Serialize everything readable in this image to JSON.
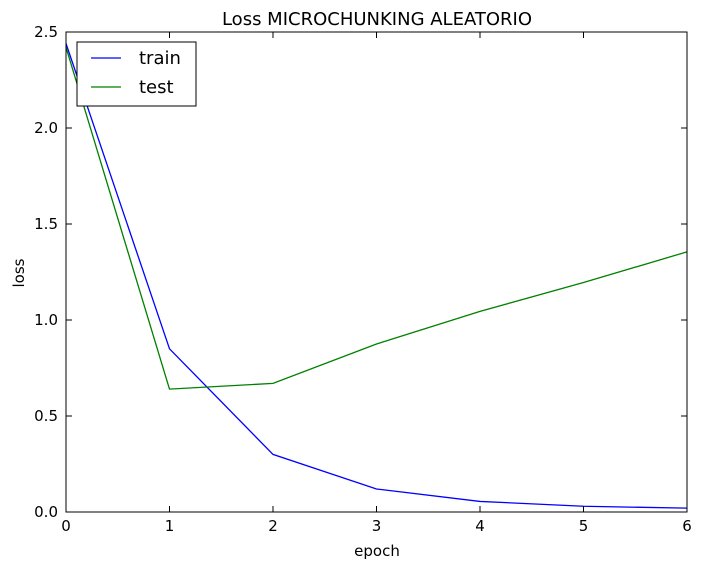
{
  "chart_data": {
    "type": "line",
    "title": "Loss MICROCHUNKING ALEATORIO",
    "xlabel": "epoch",
    "ylabel": "loss",
    "x": [
      0,
      1,
      2,
      3,
      4,
      5,
      6
    ],
    "xlim": [
      0,
      6
    ],
    "ylim": [
      0.0,
      2.5
    ],
    "xticks": [
      "0",
      "1",
      "2",
      "3",
      "4",
      "5",
      "6"
    ],
    "yticks": [
      "0.0",
      "0.5",
      "1.0",
      "1.5",
      "2.0",
      "2.5"
    ],
    "grid": false,
    "legend_position": "top-left",
    "series": [
      {
        "name": "train",
        "color": "#0000ff",
        "values": [
          2.44,
          0.85,
          0.3,
          0.12,
          0.055,
          0.03,
          0.02
        ]
      },
      {
        "name": "test",
        "color": "#008000",
        "values": [
          2.42,
          0.64,
          0.67,
          0.875,
          1.045,
          1.195,
          1.355
        ]
      }
    ]
  }
}
